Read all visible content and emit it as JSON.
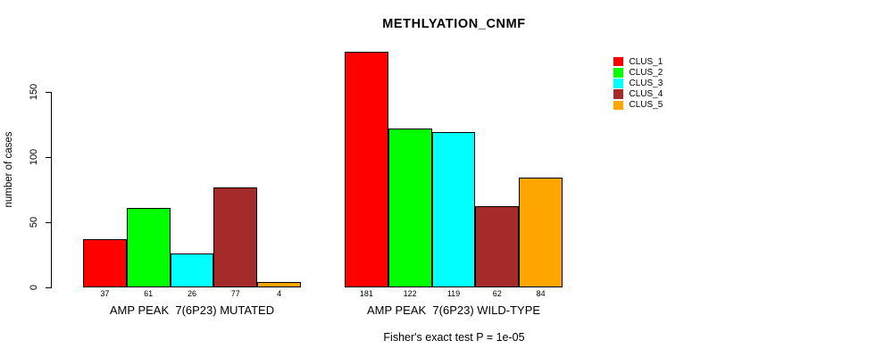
{
  "chart_data": {
    "type": "bar",
    "title": "METHLYATION_CNMF",
    "ylabel": "number of cases",
    "xlabel": "",
    "ylim": [
      0,
      150
    ],
    "yticks": [
      0,
      50,
      100,
      150
    ],
    "grid": false,
    "legend_position": "right",
    "categories": [
      "AMP PEAK  7(6P23) MUTATED",
      "AMP PEAK  7(6P23) WILD-TYPE"
    ],
    "series": [
      {
        "name": "CLUS_1",
        "color": "#FF0000",
        "values": [
          37,
          181
        ]
      },
      {
        "name": "CLUS_2",
        "color": "#00FF00",
        "values": [
          61,
          122
        ]
      },
      {
        "name": "CLUS_3",
        "color": "#00FFFF",
        "values": [
          26,
          119
        ]
      },
      {
        "name": "CLUS_4",
        "color": "#A52A2A",
        "values": [
          77,
          62
        ]
      },
      {
        "name": "CLUS_5",
        "color": "#FFA500",
        "values": [
          4,
          84
        ]
      }
    ],
    "bar_value_labels_shown": true,
    "annotation": "Fisher's exact test P = 1e-05"
  }
}
